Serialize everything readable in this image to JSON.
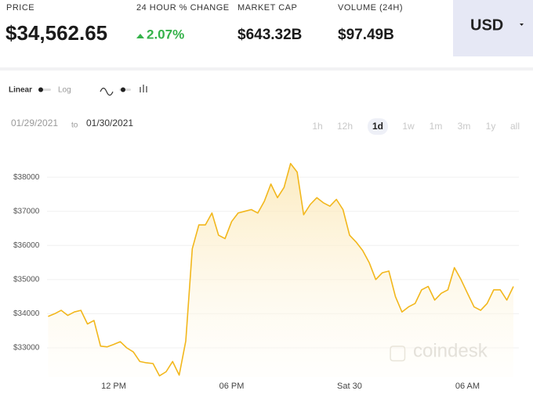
{
  "header": {
    "price_label": "PRICE",
    "price": "$34,562.65",
    "change_label": "24 HOUR % CHANGE",
    "change": "2.07%",
    "market_cap_label": "MARKET CAP",
    "market_cap": "$643.32B",
    "volume_label": "VOLUME (24H)",
    "volume": "$97.49B",
    "currency": "USD"
  },
  "controls": {
    "linear": "Linear",
    "log": "Log",
    "date_from": "01/29/2021",
    "date_sep": "to",
    "date_to": "01/30/2021",
    "ranges": [
      "1h",
      "12h",
      "1d",
      "1w",
      "1m",
      "3m",
      "1y",
      "all"
    ],
    "active_range": "1d"
  },
  "watermark": "coindesk",
  "chart_data": {
    "type": "line",
    "color": "#f2b71c",
    "grid": true,
    "categories": [
      null,
      null,
      null,
      null,
      null,
      null,
      null,
      null,
      null,
      null,
      "12 PM",
      null,
      null,
      null,
      null,
      null,
      null,
      null,
      null,
      null,
      null,
      null,
      null,
      null,
      null,
      null,
      null,
      null,
      "06 PM",
      null,
      null,
      null,
      null,
      null,
      null,
      null,
      null,
      null,
      null,
      null,
      null,
      null,
      null,
      null,
      null,
      null,
      "Sat 30",
      null,
      null,
      null,
      null,
      null,
      null,
      null,
      null,
      null,
      null,
      null,
      null,
      null,
      null,
      null,
      null,
      null,
      "06 AM",
      null,
      null,
      null,
      null,
      null,
      null,
      null
    ],
    "values": [
      33920,
      34000,
      34100,
      33950,
      34050,
      34100,
      33700,
      33800,
      33050,
      33030,
      33100,
      33180,
      33000,
      32880,
      32600,
      32560,
      32540,
      32180,
      32300,
      32600,
      32200,
      33200,
      35900,
      36600,
      36600,
      36950,
      36300,
      36200,
      36700,
      36950,
      37000,
      37050,
      36950,
      37300,
      37800,
      37400,
      37700,
      38400,
      38150,
      36900,
      37200,
      37400,
      37250,
      37150,
      37350,
      37050,
      36300,
      36100,
      35850,
      35500,
      35000,
      35200,
      35250,
      34500,
      34050,
      34200,
      34300,
      34700,
      34800,
      34400,
      34600,
      34700,
      35350,
      35000,
      34600,
      34200,
      34100,
      34300,
      34700,
      34700,
      34400,
      34800
    ],
    "ylim": [
      32150,
      38830
    ],
    "yticks": [
      {
        "value": 33000,
        "label": "$33000"
      },
      {
        "value": 34000,
        "label": "$34000"
      },
      {
        "value": 35000,
        "label": "$35000"
      },
      {
        "value": 36000,
        "label": "$36000"
      },
      {
        "value": 37000,
        "label": "$37000"
      },
      {
        "value": 38000,
        "label": "$38000"
      }
    ]
  }
}
